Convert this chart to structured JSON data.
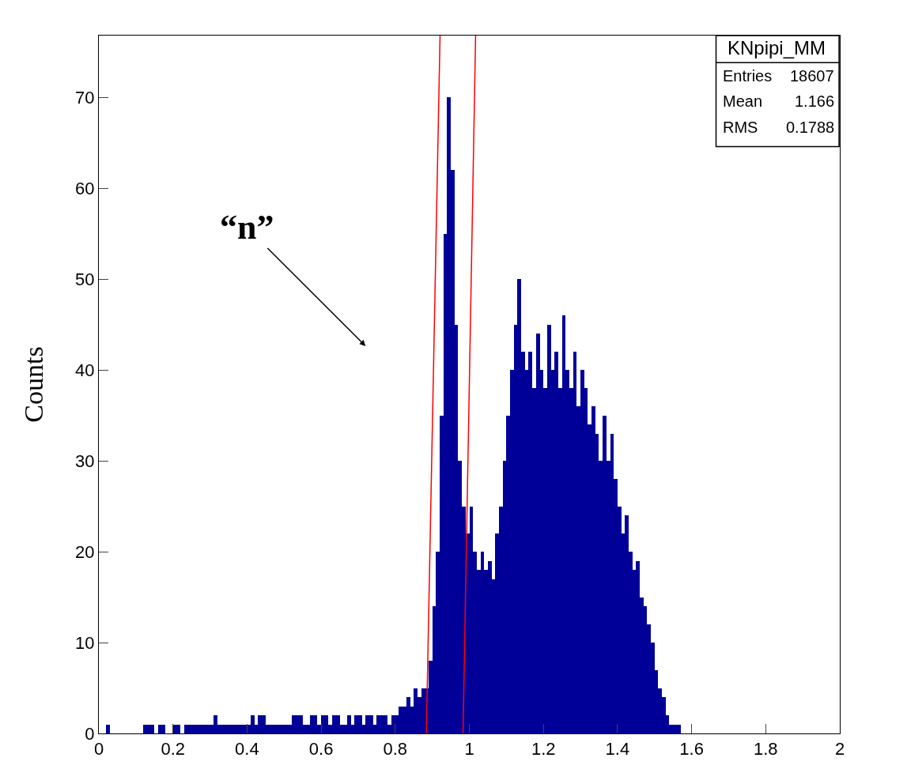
{
  "chart_data": {
    "type": "histogram",
    "ylabel": "Counts",
    "xlim": [
      0,
      2
    ],
    "ylim": [
      0,
      76.8
    ],
    "xticks": [
      0,
      0.2,
      0.4,
      0.6,
      0.8,
      1,
      1.2,
      1.4,
      1.6,
      1.8,
      2
    ],
    "yticks": [
      0,
      10,
      20,
      30,
      40,
      50,
      60,
      70
    ],
    "annotations": [
      "KNpipi_MM",
      "Entries 18607",
      "Mean 1.166",
      "RMS 0.1788",
      "“n”"
    ],
    "series": [
      {
        "color": "#000099",
        "bins": [
          0,
          0.01,
          0.02,
          0.03,
          0.04,
          0.05,
          0.06,
          0.07,
          0.08,
          0.09,
          0.1,
          0.11,
          0.12,
          0.13,
          0.14,
          0.15,
          0.16,
          0.17,
          0.18,
          0.19,
          0.2,
          0.21,
          0.22,
          0.23,
          0.24,
          0.25,
          0.26,
          0.27,
          0.28,
          0.29,
          0.3,
          0.31,
          0.32,
          0.33,
          0.34,
          0.35,
          0.36,
          0.37,
          0.38,
          0.39,
          0.4,
          0.41,
          0.42,
          0.43,
          0.44,
          0.45,
          0.46,
          0.47,
          0.48,
          0.49,
          0.5,
          0.51,
          0.52,
          0.53,
          0.54,
          0.55,
          0.56,
          0.57,
          0.58,
          0.59,
          0.6,
          0.61,
          0.62,
          0.63,
          0.64,
          0.65,
          0.66,
          0.67,
          0.68,
          0.69,
          0.7,
          0.71,
          0.72,
          0.73,
          0.74,
          0.75,
          0.76,
          0.77,
          0.78,
          0.79,
          0.8,
          0.81,
          0.82,
          0.83,
          0.84,
          0.85,
          0.86,
          0.87,
          0.88,
          0.89,
          0.9,
          0.91,
          0.92,
          0.93,
          0.94,
          0.95,
          0.96,
          0.97,
          0.98,
          0.99,
          1,
          1.01,
          1.02,
          1.03,
          1.04,
          1.05,
          1.06,
          1.07,
          1.08,
          1.09,
          1.1,
          1.11,
          1.12,
          1.13,
          1.14,
          1.15,
          1.16,
          1.17,
          1.18,
          1.19,
          1.2,
          1.21,
          1.22,
          1.23,
          1.24,
          1.25,
          1.26,
          1.27,
          1.28,
          1.29,
          1.3,
          1.31,
          1.32,
          1.33,
          1.34,
          1.35,
          1.36,
          1.37,
          1.38,
          1.39,
          1.4,
          1.41,
          1.42,
          1.43,
          1.44,
          1.45,
          1.46,
          1.47,
          1.48,
          1.49,
          1.5,
          1.51,
          1.52,
          1.53,
          1.54,
          1.55,
          1.56,
          1.57,
          1.58,
          1.59,
          1.6
        ],
        "values": [
          0,
          0,
          1,
          0,
          0,
          0,
          0,
          0,
          0,
          0,
          0,
          0,
          1,
          1,
          1,
          0,
          1,
          1,
          0,
          0,
          1,
          1,
          0,
          1,
          1,
          1,
          1,
          1,
          1,
          1,
          1,
          2,
          1,
          1,
          1,
          1,
          1,
          1,
          1,
          1,
          1,
          2,
          1,
          2,
          2,
          1,
          1,
          1,
          1,
          1,
          1,
          1,
          2,
          2,
          2,
          1,
          1,
          2,
          2,
          1,
          2,
          2,
          1,
          2,
          2,
          1,
          1,
          2,
          1,
          2,
          2,
          1,
          2,
          2,
          1,
          2,
          2,
          2,
          1,
          2,
          2,
          3,
          3,
          4,
          3,
          5,
          4,
          5,
          5,
          8,
          14,
          20,
          35,
          55,
          70,
          62,
          45,
          30,
          25,
          22,
          25,
          20,
          18,
          20,
          18,
          19,
          17,
          22,
          25,
          30,
          35,
          40,
          45,
          50,
          42,
          40,
          42,
          38,
          44,
          40,
          38,
          45,
          40,
          42,
          38,
          46,
          40,
          38,
          42,
          36,
          40,
          38,
          34,
          36,
          33,
          30,
          35,
          30,
          33,
          28,
          25,
          22,
          24,
          20,
          18,
          19,
          15,
          14,
          12,
          10,
          7,
          5,
          4,
          2,
          1,
          1,
          1,
          0,
          0,
          0
        ]
      },
      {
        "type": "line",
        "color": "#ff0000",
        "x": [
          0.884,
          0.921
        ],
        "values": [
          0,
          76.8
        ]
      },
      {
        "type": "line",
        "color": "#ff0000",
        "x": [
          0.983,
          1.017
        ],
        "values": [
          0,
          76.8
        ]
      }
    ]
  }
}
